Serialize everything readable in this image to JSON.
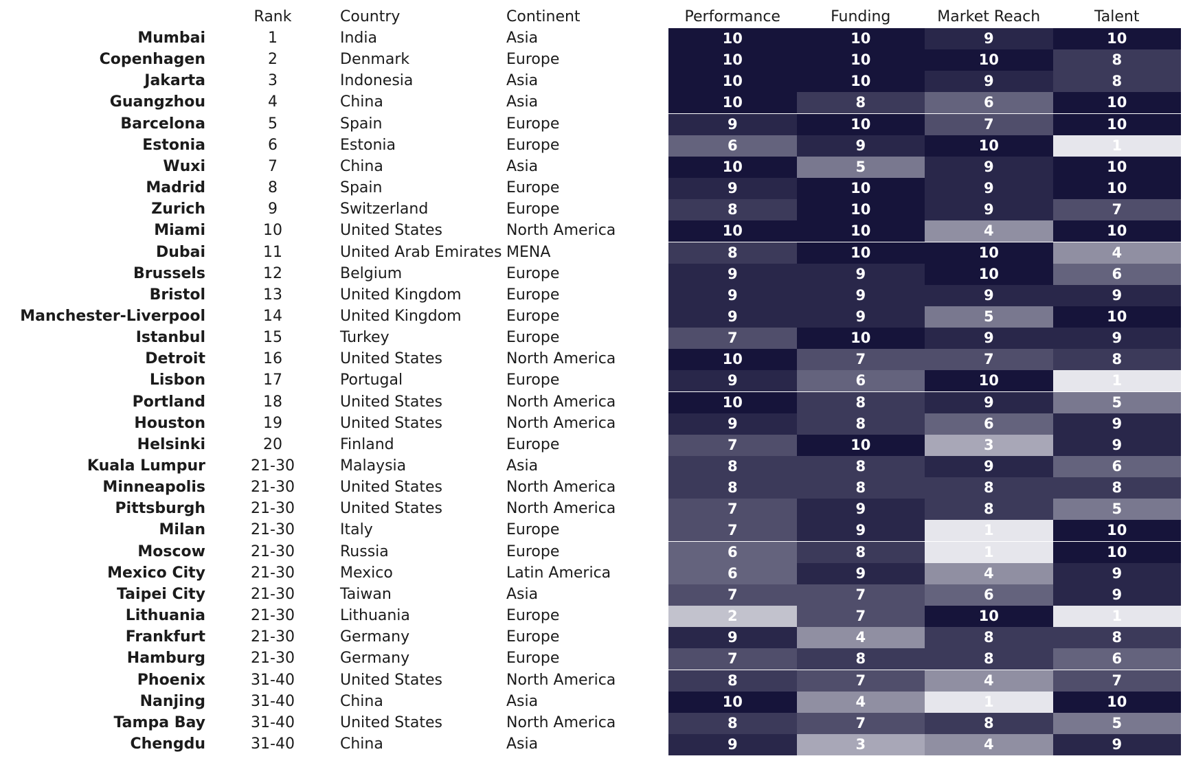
{
  "chart_data": {
    "type": "heatmap",
    "columns": [
      "Rank",
      "Country",
      "Continent",
      "Performance",
      "Funding",
      "Market Reach",
      "Talent"
    ],
    "score_columns": [
      "Performance",
      "Funding",
      "Market Reach",
      "Talent"
    ],
    "value_range": [
      1,
      10
    ],
    "color_scale": {
      "low": "#e6e6ec",
      "high": "#16143a"
    },
    "rows": [
      {
        "city": "Mumbai",
        "rank": "1",
        "country": "India",
        "continent": "Asia",
        "scores": [
          10,
          10,
          9,
          10
        ]
      },
      {
        "city": "Copenhagen",
        "rank": "2",
        "country": "Denmark",
        "continent": "Europe",
        "scores": [
          10,
          10,
          10,
          8
        ]
      },
      {
        "city": "Jakarta",
        "rank": "3",
        "country": "Indonesia",
        "continent": "Asia",
        "scores": [
          10,
          10,
          9,
          8
        ]
      },
      {
        "city": "Guangzhou",
        "rank": "4",
        "country": "China",
        "continent": "Asia",
        "scores": [
          10,
          8,
          6,
          10
        ]
      },
      {
        "city": "Barcelona",
        "rank": "5",
        "country": "Spain",
        "continent": "Europe",
        "scores": [
          9,
          10,
          7,
          10
        ]
      },
      {
        "city": "Estonia",
        "rank": "6",
        "country": "Estonia",
        "continent": "Europe",
        "scores": [
          6,
          9,
          10,
          1
        ]
      },
      {
        "city": "Wuxi",
        "rank": "7",
        "country": "China",
        "continent": "Asia",
        "scores": [
          10,
          5,
          9,
          10
        ]
      },
      {
        "city": "Madrid",
        "rank": "8",
        "country": "Spain",
        "continent": "Europe",
        "scores": [
          9,
          10,
          9,
          10
        ]
      },
      {
        "city": "Zurich",
        "rank": "9",
        "country": "Switzerland",
        "continent": "Europe",
        "scores": [
          8,
          10,
          9,
          7
        ]
      },
      {
        "city": "Miami",
        "rank": "10",
        "country": "United States",
        "continent": "North America",
        "scores": [
          10,
          10,
          4,
          10
        ]
      },
      {
        "city": "Dubai",
        "rank": "11",
        "country": "United Arab Emirates",
        "continent": "MENA",
        "scores": [
          8,
          10,
          10,
          4
        ]
      },
      {
        "city": "Brussels",
        "rank": "12",
        "country": "Belgium",
        "continent": "Europe",
        "scores": [
          9,
          9,
          10,
          6
        ]
      },
      {
        "city": "Bristol",
        "rank": "13",
        "country": "United Kingdom",
        "continent": "Europe",
        "scores": [
          9,
          9,
          9,
          9
        ]
      },
      {
        "city": "Manchester-Liverpool",
        "rank": "14",
        "country": "United Kingdom",
        "continent": "Europe",
        "scores": [
          9,
          9,
          5,
          10
        ]
      },
      {
        "city": "Istanbul",
        "rank": "15",
        "country": "Turkey",
        "continent": "Europe",
        "scores": [
          7,
          10,
          9,
          9
        ]
      },
      {
        "city": "Detroit",
        "rank": "16",
        "country": "United States",
        "continent": "North America",
        "scores": [
          10,
          7,
          7,
          8
        ]
      },
      {
        "city": "Lisbon",
        "rank": "17",
        "country": "Portugal",
        "continent": "Europe",
        "scores": [
          9,
          6,
          10,
          1
        ]
      },
      {
        "city": "Portland",
        "rank": "18",
        "country": "United States",
        "continent": "North America",
        "scores": [
          10,
          8,
          9,
          5
        ]
      },
      {
        "city": "Houston",
        "rank": "19",
        "country": "United States",
        "continent": "North America",
        "scores": [
          9,
          8,
          6,
          9
        ]
      },
      {
        "city": "Helsinki",
        "rank": "20",
        "country": "Finland",
        "continent": "Europe",
        "scores": [
          7,
          10,
          3,
          9
        ]
      },
      {
        "city": "Kuala Lumpur",
        "rank": "21-30",
        "country": "Malaysia",
        "continent": "Asia",
        "scores": [
          8,
          8,
          9,
          6
        ]
      },
      {
        "city": "Minneapolis",
        "rank": "21-30",
        "country": "United States",
        "continent": "North America",
        "scores": [
          8,
          8,
          8,
          8
        ]
      },
      {
        "city": "Pittsburgh",
        "rank": "21-30",
        "country": "United States",
        "continent": "North America",
        "scores": [
          7,
          9,
          8,
          5
        ]
      },
      {
        "city": "Milan",
        "rank": "21-30",
        "country": "Italy",
        "continent": "Europe",
        "scores": [
          7,
          9,
          1,
          10
        ]
      },
      {
        "city": "Moscow",
        "rank": "21-30",
        "country": "Russia",
        "continent": "Europe",
        "scores": [
          6,
          8,
          1,
          10
        ]
      },
      {
        "city": "Mexico City",
        "rank": "21-30",
        "country": "Mexico",
        "continent": "Latin America",
        "scores": [
          6,
          9,
          4,
          9
        ]
      },
      {
        "city": "Taipei City",
        "rank": "21-30",
        "country": "Taiwan",
        "continent": "Asia",
        "scores": [
          7,
          7,
          6,
          9
        ]
      },
      {
        "city": "Lithuania",
        "rank": "21-30",
        "country": "Lithuania",
        "continent": "Europe",
        "scores": [
          2,
          7,
          10,
          1
        ]
      },
      {
        "city": "Frankfurt",
        "rank": "21-30",
        "country": "Germany",
        "continent": "Europe",
        "scores": [
          9,
          4,
          8,
          8
        ]
      },
      {
        "city": "Hamburg",
        "rank": "21-30",
        "country": "Germany",
        "continent": "Europe",
        "scores": [
          7,
          8,
          8,
          6
        ]
      },
      {
        "city": "Phoenix",
        "rank": "31-40",
        "country": "United States",
        "continent": "North America",
        "scores": [
          8,
          7,
          4,
          7
        ]
      },
      {
        "city": "Nanjing",
        "rank": "31-40",
        "country": "China",
        "continent": "Asia",
        "scores": [
          10,
          4,
          1,
          10
        ]
      },
      {
        "city": "Tampa Bay",
        "rank": "31-40",
        "country": "United States",
        "continent": "North America",
        "scores": [
          8,
          7,
          8,
          5
        ]
      },
      {
        "city": "Chengdu",
        "rank": "31-40",
        "country": "China",
        "continent": "Asia",
        "scores": [
          9,
          3,
          4,
          9
        ]
      }
    ]
  }
}
